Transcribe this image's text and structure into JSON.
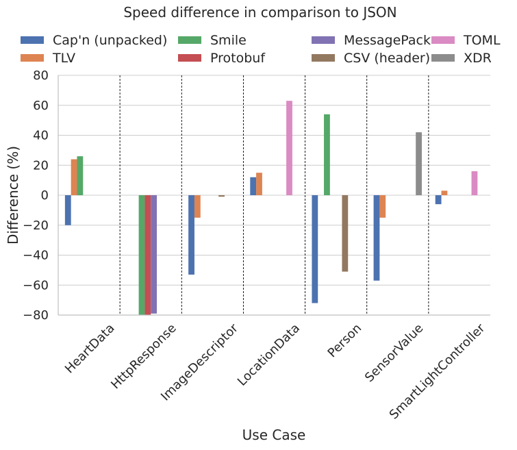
{
  "chart_data": {
    "type": "bar",
    "title": "Speed difference in comparison to JSON",
    "xlabel": "Use Case",
    "ylabel": "Difference (%)",
    "ylim": [
      -80,
      80
    ],
    "yticks": [
      80,
      60,
      40,
      20,
      0,
      -20,
      -40,
      -60,
      -80
    ],
    "grid": "horizontal",
    "legend_position": "top",
    "categories": [
      "HeartData",
      "HttpResponse",
      "ImageDescriptor",
      "LocationData",
      "Person",
      "SensorValue",
      "SmartLightController"
    ],
    "series": [
      {
        "name": "Cap'n (unpacked)",
        "color": "#4c72b0",
        "values": [
          -20,
          0,
          -53,
          12,
          -72,
          -57,
          -6
        ]
      },
      {
        "name": "TLV",
        "color": "#dd8452",
        "values": [
          24,
          0,
          -15,
          15,
          0,
          -15,
          3
        ]
      },
      {
        "name": "Smile",
        "color": "#55a868",
        "values": [
          26,
          -80,
          0,
          0,
          54,
          0,
          0
        ]
      },
      {
        "name": "Protobuf",
        "color": "#c44e52",
        "values": [
          0,
          -80,
          0,
          0,
          0,
          0,
          0
        ]
      },
      {
        "name": "MessagePack",
        "color": "#8172b3",
        "values": [
          0,
          -79,
          0,
          0,
          0,
          0,
          0
        ]
      },
      {
        "name": "CSV (header)",
        "color": "#937860",
        "values": [
          0,
          0,
          -1,
          0,
          -51,
          0,
          0
        ]
      },
      {
        "name": "TOML",
        "color": "#da8bc3",
        "values": [
          0,
          0,
          0,
          63,
          0,
          0,
          16
        ]
      },
      {
        "name": "XDR",
        "color": "#8c8c8c",
        "values": [
          0,
          0,
          0,
          0,
          0,
          42,
          0
        ]
      }
    ]
  }
}
